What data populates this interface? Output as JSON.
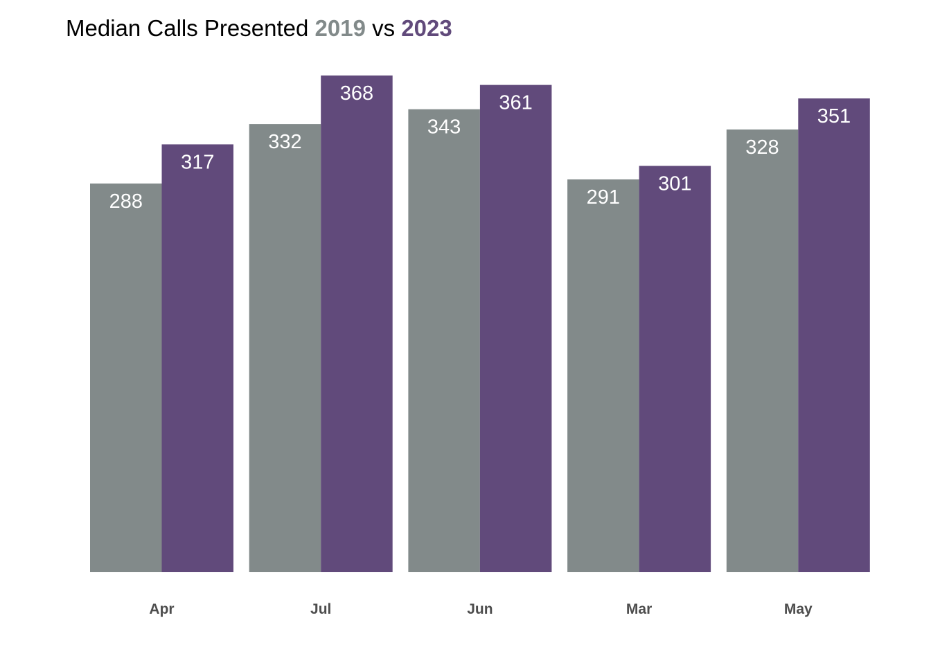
{
  "title": {
    "prefix": "Median Calls Presented",
    "series_a": "2019",
    "connector": "vs",
    "series_b": "2023"
  },
  "colors": {
    "series_2019": "#828A8A",
    "series_2023": "#614A7B",
    "bar_label": "#FFFFFF",
    "axis_label": "#4D4D4D"
  },
  "chart_data": {
    "type": "bar",
    "title": "Median Calls Presented 2019 vs 2023",
    "categories": [
      "Apr",
      "Jul",
      "Jun",
      "Mar",
      "May"
    ],
    "series": [
      {
        "name": "2019",
        "values": [
          288,
          332,
          343,
          291,
          328
        ]
      },
      {
        "name": "2023",
        "values": [
          317,
          368,
          361,
          301,
          351
        ]
      }
    ],
    "xlabel": "",
    "ylabel": "",
    "ylim": [
      0,
      368
    ],
    "grid": false,
    "legend": "none",
    "data_labels": "inside-top"
  }
}
